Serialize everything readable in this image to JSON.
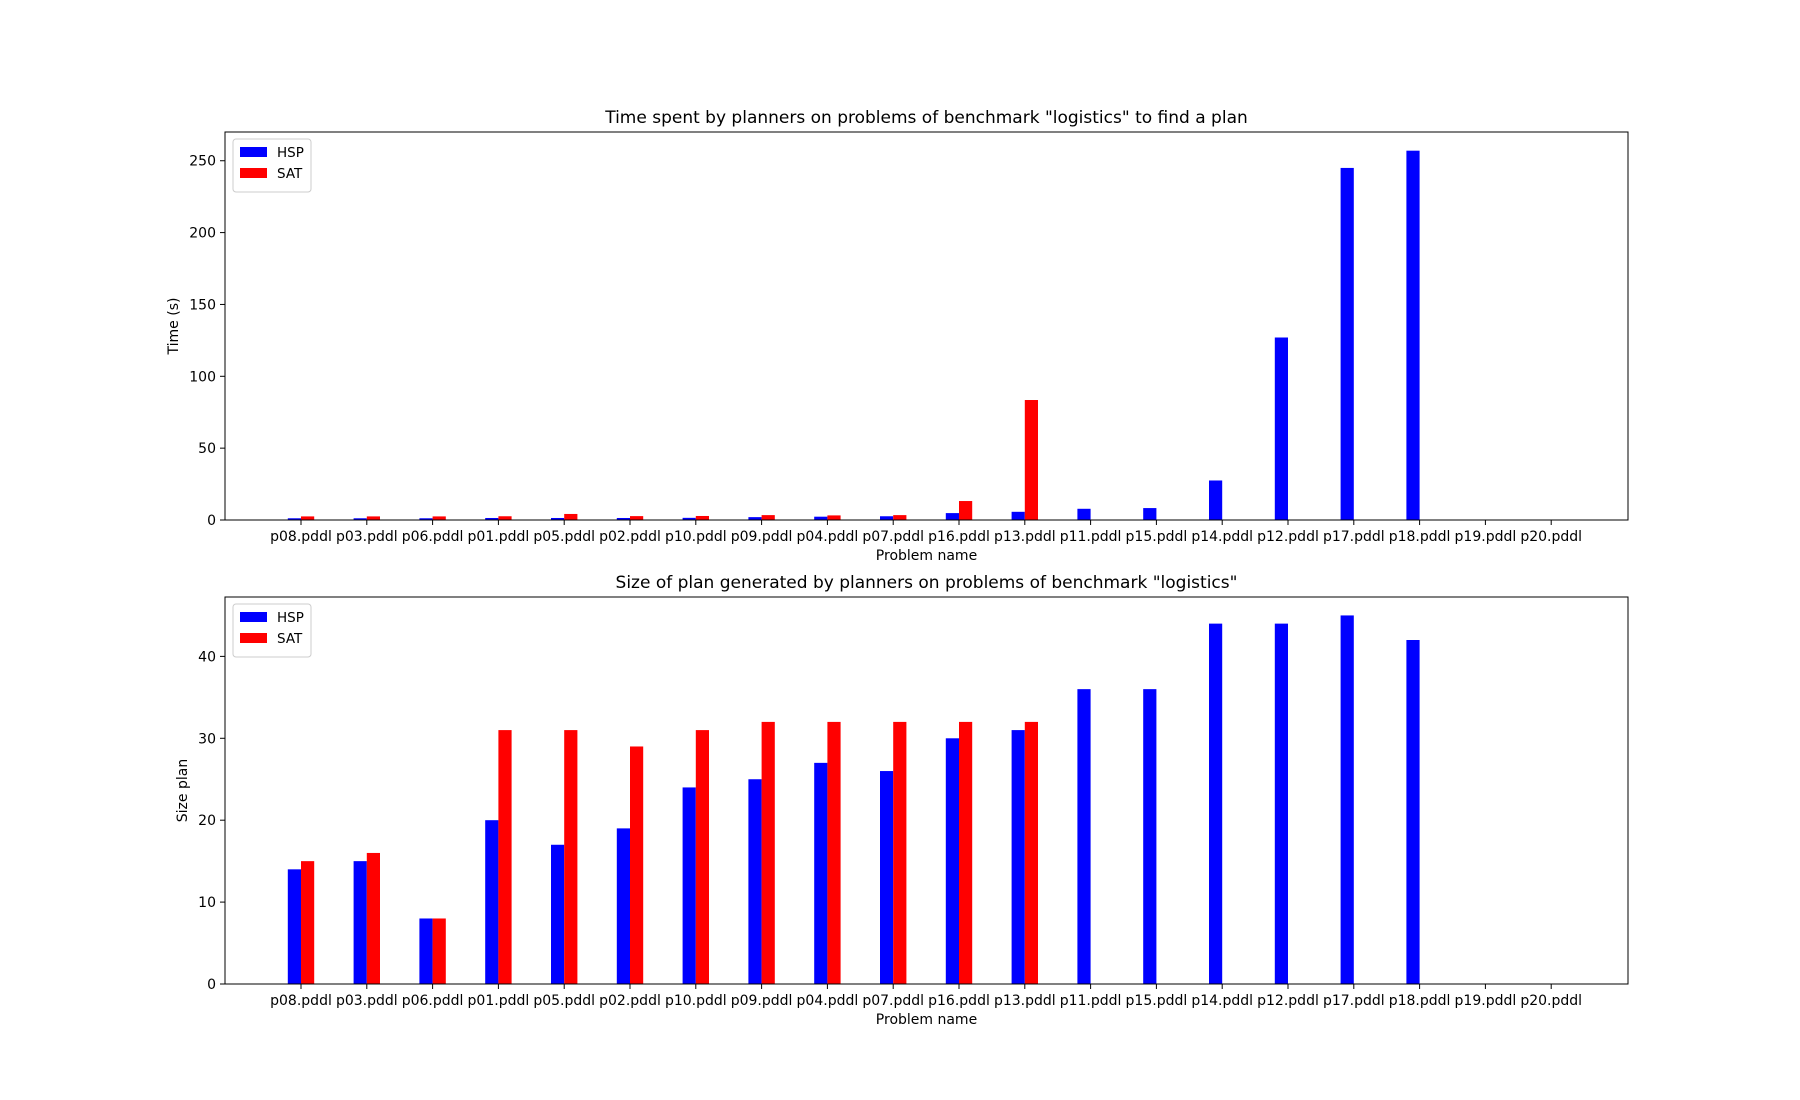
{
  "chart_data": [
    {
      "type": "bar",
      "title": "Time spent by planners on problems of benchmark \"logistics\" to find a plan",
      "xlabel": "Problem name",
      "ylabel": "Time (s)",
      "ylim": [
        0,
        270
      ],
      "yticks": [
        0,
        50,
        100,
        150,
        200,
        250
      ],
      "grid": false,
      "legend_position": "top-left",
      "categories": [
        "p08.pddl",
        "p03.pddl",
        "p06.pddl",
        "p01.pddl",
        "p05.pddl",
        "p02.pddl",
        "p10.pddl",
        "p09.pddl",
        "p04.pddl",
        "p07.pddl",
        "p16.pddl",
        "p13.pddl",
        "p11.pddl",
        "p15.pddl",
        "p14.pddl",
        "p12.pddl",
        "p17.pddl",
        "p18.pddl",
        "p19.pddl",
        "p20.pddl"
      ],
      "series": [
        {
          "name": "HSP",
          "color": "#0000ff",
          "values": [
            1.2,
            1.2,
            1.2,
            1.4,
            1.4,
            1.4,
            1.5,
            2.0,
            2.3,
            2.6,
            4.8,
            5.7,
            7.8,
            8.3,
            27.5,
            127,
            245,
            257,
            0,
            0
          ]
        },
        {
          "name": "SAT",
          "color": "#ff0000",
          "values": [
            2.5,
            2.5,
            2.5,
            2.6,
            4.2,
            2.7,
            2.8,
            3.4,
            3.2,
            3.4,
            13.2,
            83.5,
            0,
            0,
            0,
            0,
            0,
            0,
            0,
            0
          ]
        }
      ]
    },
    {
      "type": "bar",
      "title": "Size of plan generated by planners on problems of benchmark \"logistics\"",
      "xlabel": "Problem name",
      "ylabel": "Size plan",
      "ylim": [
        0,
        47.25
      ],
      "yticks": [
        0,
        10,
        20,
        30,
        40
      ],
      "grid": false,
      "legend_position": "top-left",
      "categories": [
        "p08.pddl",
        "p03.pddl",
        "p06.pddl",
        "p01.pddl",
        "p05.pddl",
        "p02.pddl",
        "p10.pddl",
        "p09.pddl",
        "p04.pddl",
        "p07.pddl",
        "p16.pddl",
        "p13.pddl",
        "p11.pddl",
        "p15.pddl",
        "p14.pddl",
        "p12.pddl",
        "p17.pddl",
        "p18.pddl",
        "p19.pddl",
        "p20.pddl"
      ],
      "series": [
        {
          "name": "HSP",
          "color": "#0000ff",
          "values": [
            14,
            15,
            8,
            20,
            17,
            19,
            24,
            25,
            27,
            26,
            30,
            31,
            36,
            36,
            44,
            44,
            45,
            42,
            0,
            0
          ]
        },
        {
          "name": "SAT",
          "color": "#ff0000",
          "values": [
            15,
            16,
            8,
            31,
            31,
            29,
            31,
            32,
            32,
            32,
            32,
            32,
            0,
            0,
            0,
            0,
            0,
            0,
            0,
            0
          ]
        }
      ]
    }
  ]
}
